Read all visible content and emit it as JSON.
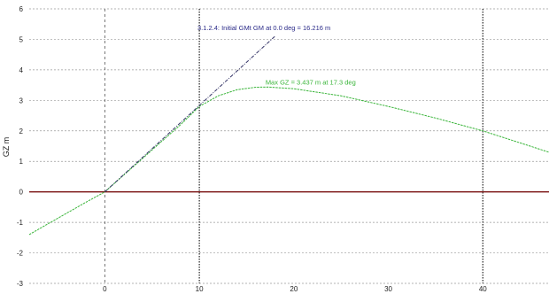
{
  "chart_data": {
    "type": "line",
    "title": "",
    "xlabel": "",
    "ylabel": "GZ m",
    "xlim": [
      -8,
      47
    ],
    "ylim": [
      -3,
      6
    ],
    "x_ticks": [
      0,
      10,
      20,
      30,
      40
    ],
    "y_ticks": [
      -3,
      -2,
      -1,
      0,
      1,
      2,
      3,
      4,
      5,
      6
    ],
    "grid": "dotted",
    "series": [
      {
        "name": "",
        "color": "#3ab53a",
        "x": [
          -8,
          -5,
          -2,
          0,
          2,
          4,
          6,
          8,
          10,
          12,
          14,
          16,
          17.3,
          20,
          25,
          30,
          35,
          40,
          45,
          47
        ],
        "y": [
          -1.4,
          -0.87,
          -0.34,
          0.0,
          0.55,
          1.1,
          1.65,
          2.2,
          2.8,
          3.15,
          3.35,
          3.43,
          3.437,
          3.38,
          3.15,
          2.8,
          2.42,
          2.0,
          1.5,
          1.3
        ]
      },
      {
        "name": "",
        "color": "#333366",
        "style": "dash-dot",
        "x": [
          0,
          18
        ],
        "y": [
          0,
          5.1
        ]
      }
    ],
    "baseline": {
      "y": 0,
      "color": "#7a1010"
    },
    "vertical_lines": [
      {
        "x": 0,
        "style": "dashed",
        "color": "#555555"
      },
      {
        "x": 10,
        "style": "solid",
        "color": "#222222"
      },
      {
        "x": 40,
        "style": "solid",
        "color": "#222222"
      }
    ],
    "annotations": [
      {
        "text": "3.1.2.4: Initial GMt GM at 0.0 deg = 16.216 m",
        "x": 9.8,
        "y": 5.3,
        "color": "#2a2a88"
      },
      {
        "text": "Max GZ = 3.437 m at 17.3 deg",
        "x": 17,
        "y": 3.52,
        "color": "#3ab53a"
      }
    ]
  }
}
